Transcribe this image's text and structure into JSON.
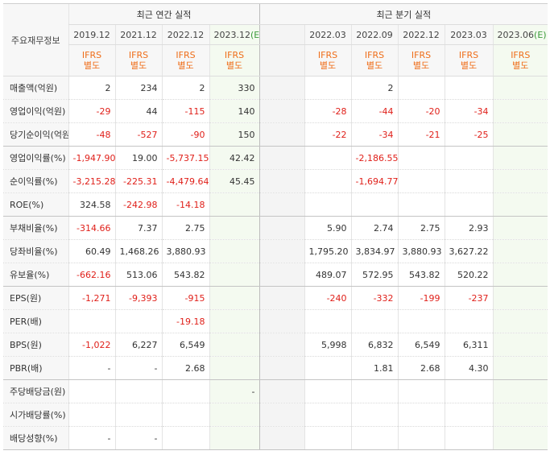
{
  "corner_label": "주요재무정보",
  "groups": {
    "annual": "최근 연간 실적",
    "quarterly": "최근 분기 실적"
  },
  "annual_periods": [
    "2019.12",
    "2021.12",
    "2022.12",
    "2023.12"
  ],
  "quarter_periods": [
    "2022.03",
    "2022.09",
    "2022.12",
    "2023.03",
    "2023.06"
  ],
  "estimate_mark": "(E)",
  "ifrs": {
    "line1": "IFRS",
    "line2": "별도"
  },
  "rows": [
    {
      "label": "매출액(억원)",
      "annual": [
        "2",
        "234",
        "2",
        "330"
      ],
      "quarterly": [
        "",
        "2",
        "",
        "",
        ""
      ]
    },
    {
      "label": "영업이익(억원)",
      "annual": [
        "-29",
        "44",
        "-115",
        "140"
      ],
      "quarterly": [
        "-28",
        "-44",
        "-20",
        "-34",
        ""
      ]
    },
    {
      "label": "당기순이익(억원)",
      "annual": [
        "-48",
        "-527",
        "-90",
        "150"
      ],
      "quarterly": [
        "-22",
        "-34",
        "-21",
        "-25",
        ""
      ]
    },
    {
      "label": "영업이익률(%)",
      "annual": [
        "-1,947.90",
        "19.00",
        "-5,737.15",
        "42.42"
      ],
      "quarterly": [
        "",
        "-2,186.55",
        "",
        "",
        ""
      ]
    },
    {
      "label": "순이익률(%)",
      "annual": [
        "-3,215.28",
        "-225.31",
        "-4,479.64",
        "45.45"
      ],
      "quarterly": [
        "",
        "-1,694.77",
        "",
        "",
        ""
      ]
    },
    {
      "label": "ROE(%)",
      "annual": [
        "324.58",
        "-242.98",
        "-14.18",
        ""
      ],
      "quarterly": [
        "",
        "",
        "",
        "",
        ""
      ]
    },
    {
      "label": "부채비율(%)",
      "annual": [
        "-314.66",
        "7.37",
        "2.75",
        ""
      ],
      "quarterly": [
        "5.90",
        "2.74",
        "2.75",
        "2.93",
        ""
      ]
    },
    {
      "label": "당좌비율(%)",
      "annual": [
        "60.49",
        "1,468.26",
        "3,880.93",
        ""
      ],
      "quarterly": [
        "1,795.20",
        "3,834.97",
        "3,880.93",
        "3,627.22",
        ""
      ]
    },
    {
      "label": "유보율(%)",
      "annual": [
        "-662.16",
        "513.06",
        "543.82",
        ""
      ],
      "quarterly": [
        "489.07",
        "572.95",
        "543.82",
        "520.22",
        ""
      ]
    },
    {
      "label": "EPS(원)",
      "annual": [
        "-1,271",
        "-9,393",
        "-915",
        ""
      ],
      "quarterly": [
        "-240",
        "-332",
        "-199",
        "-237",
        ""
      ]
    },
    {
      "label": "PER(배)",
      "annual": [
        "",
        "",
        "-19.18",
        ""
      ],
      "quarterly": [
        "",
        "",
        "",
        "",
        ""
      ]
    },
    {
      "label": "BPS(원)",
      "annual": [
        "-1,022",
        "6,227",
        "6,549",
        ""
      ],
      "quarterly": [
        "5,998",
        "6,832",
        "6,549",
        "6,311",
        ""
      ]
    },
    {
      "label": "PBR(배)",
      "annual": [
        "-",
        "-",
        "2.68",
        ""
      ],
      "quarterly": [
        "",
        "1.81",
        "2.68",
        "4.30",
        ""
      ]
    },
    {
      "label": "주당배당금(원)",
      "annual": [
        "",
        "",
        "",
        "-"
      ],
      "quarterly": [
        "",
        "",
        "",
        "",
        ""
      ]
    },
    {
      "label": "시가배당률(%)",
      "annual": [
        "",
        "",
        "",
        ""
      ],
      "quarterly": [
        "",
        "",
        "",
        "",
        ""
      ]
    },
    {
      "label": "배당성향(%)",
      "annual": [
        "-",
        "-",
        "",
        ""
      ],
      "quarterly": [
        "",
        "",
        "",
        "",
        ""
      ]
    }
  ]
}
